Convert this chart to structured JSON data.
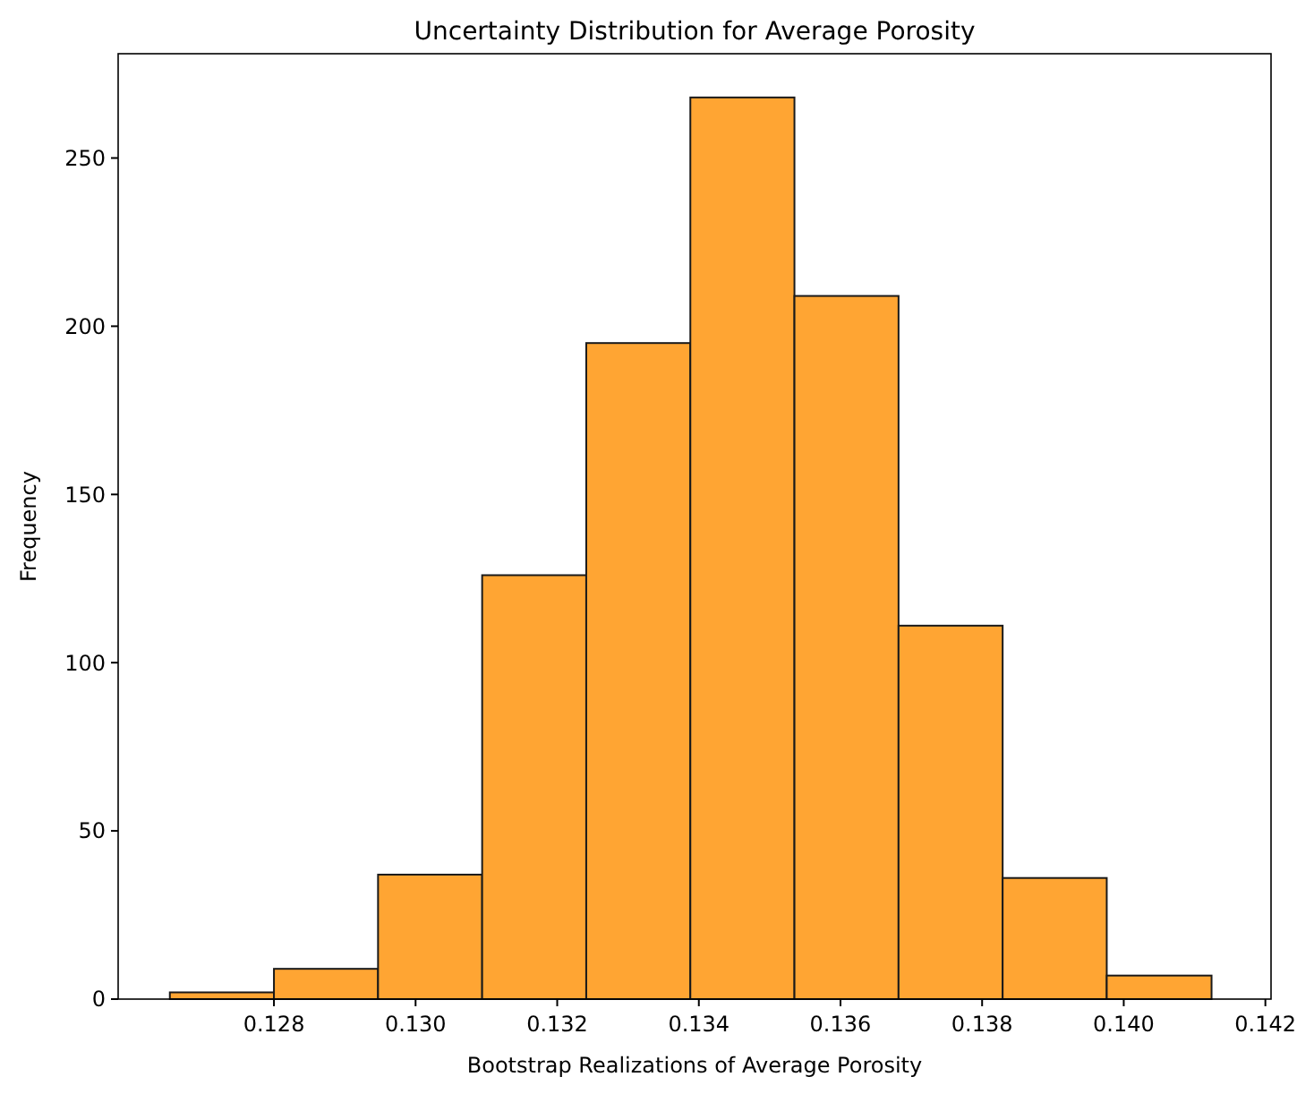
{
  "chart_data": {
    "type": "histogram",
    "title": "Uncertainty Distribution for Average Porosity",
    "xlabel": "Bootstrap Realizations of Average Porosity",
    "ylabel": "Frequency",
    "bins": [
      0.12653,
      0.128,
      0.12947,
      0.13094,
      0.13241,
      0.13388,
      0.13535,
      0.13682,
      0.13829,
      0.13976,
      0.14124
    ],
    "values": [
      2,
      9,
      37,
      126,
      195,
      268,
      209,
      111,
      36,
      7
    ],
    "color": "#ffa533",
    "xlim": [
      0.1258,
      0.14208
    ],
    "ylim": [
      0,
      281
    ],
    "xticks": [
      {
        "value": 0.128,
        "label": "0.128"
      },
      {
        "value": 0.13,
        "label": "0.130"
      },
      {
        "value": 0.132,
        "label": "0.132"
      },
      {
        "value": 0.134,
        "label": "0.134"
      },
      {
        "value": 0.136,
        "label": "0.136"
      },
      {
        "value": 0.138,
        "label": "0.138"
      },
      {
        "value": 0.14,
        "label": "0.140"
      },
      {
        "value": 0.142,
        "label": "0.142"
      }
    ],
    "yticks": [
      0,
      50,
      100,
      150,
      200,
      250
    ],
    "grid": false
  }
}
